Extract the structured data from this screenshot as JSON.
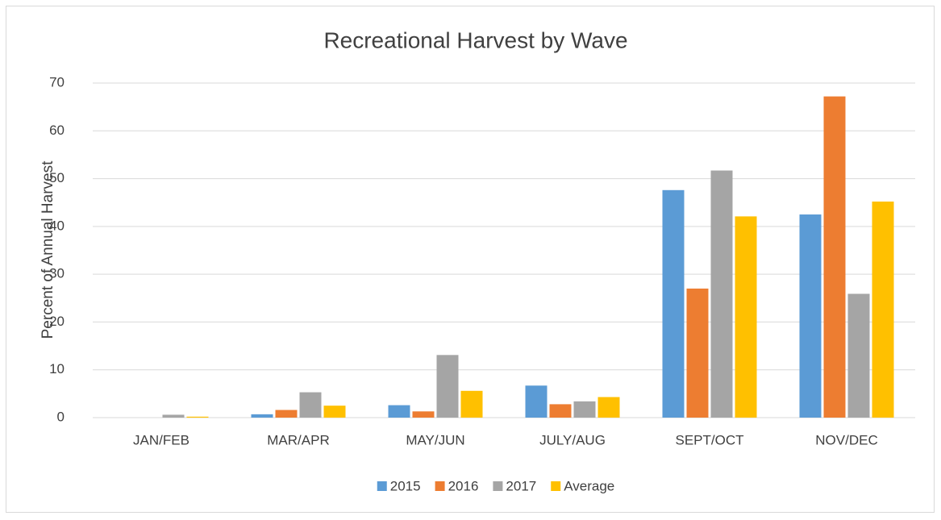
{
  "chart_data": {
    "type": "bar",
    "title": "Recreational Harvest by Wave",
    "y_label": "Percent of Annual Harvest",
    "categories": [
      "JAN/FEB",
      "MAR/APR",
      "MAY/JUN",
      "JULY/AUG",
      "SEPT/OCT",
      "NOV/DEC"
    ],
    "series": [
      {
        "name": "2015",
        "color": "#5b9bd5",
        "values": [
          0,
          0.7,
          2.6,
          6.7,
          47.6,
          42.5
        ]
      },
      {
        "name": "2016",
        "color": "#ed7d31",
        "values": [
          0,
          1.6,
          1.3,
          2.8,
          27.0,
          67.2
        ]
      },
      {
        "name": "2017",
        "color": "#a5a5a5",
        "values": [
          0.6,
          5.3,
          13.1,
          3.4,
          51.7,
          25.9
        ]
      },
      {
        "name": "Average",
        "color": "#ffc000",
        "values": [
          0.2,
          2.5,
          5.6,
          4.3,
          42.1,
          45.2
        ]
      }
    ],
    "ylim": [
      0,
      70
    ],
    "yticks": [
      0,
      10,
      20,
      30,
      40,
      50,
      60,
      70
    ],
    "grid": true,
    "legend": "bottom"
  }
}
